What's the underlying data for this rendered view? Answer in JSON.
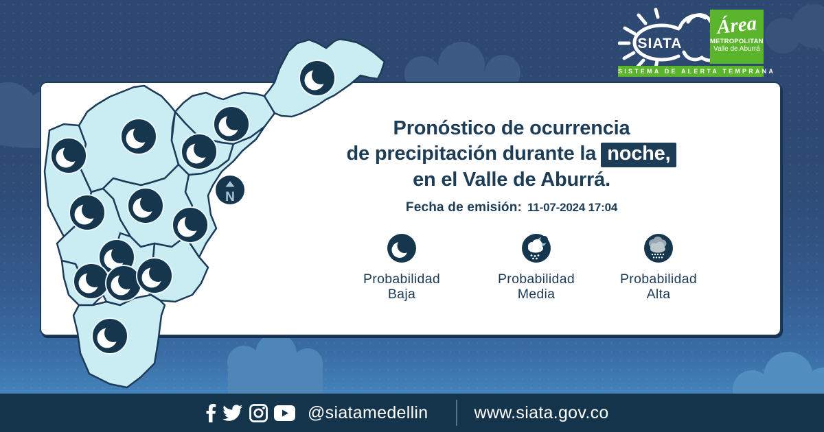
{
  "header": {
    "siata_logo": {
      "text": "SIATA"
    },
    "amva_logo": {
      "line1": "Área",
      "line2": "METROPOLITANA",
      "line3": "Valle de Aburrá"
    },
    "tagline": "SISTEMA DE ALERTA TEMPRANA"
  },
  "card": {
    "title_line1": "Pronóstico de ocurrencia",
    "title_line2_prefix": "de precipitación durante la",
    "title_highlight": "noche,",
    "title_line3": "en el Valle de Aburrá.",
    "emission_label": "Fecha de emisión:",
    "emission_value": "11-07-2024 17:04"
  },
  "map": {
    "compass_label": "N",
    "zones": [
      {
        "id": "zone-1",
        "forecast": "Probabilidad Baja",
        "marker": "moon-icon"
      },
      {
        "id": "zone-2",
        "forecast": "Probabilidad Baja",
        "marker": "moon-icon"
      },
      {
        "id": "zone-3",
        "forecast": "Probabilidad Baja",
        "marker": "moon-icon"
      },
      {
        "id": "zone-4",
        "forecast": "Probabilidad Baja",
        "marker": "moon-icon"
      },
      {
        "id": "zone-5",
        "forecast": "Probabilidad Baja",
        "marker": "moon-icon"
      },
      {
        "id": "zone-6",
        "forecast": "Probabilidad Baja",
        "marker": "moon-icon"
      },
      {
        "id": "zone-7",
        "forecast": "Probabilidad Baja",
        "marker": "moon-icon"
      },
      {
        "id": "zone-8",
        "forecast": "Probabilidad Baja",
        "marker": "moon-icon"
      },
      {
        "id": "zone-9",
        "forecast": "Probabilidad Baja",
        "marker": "moon-icon"
      },
      {
        "id": "zone-10",
        "forecast": "Probabilidad Baja",
        "marker": "moon-icon"
      },
      {
        "id": "zone-11",
        "forecast": "Probabilidad Baja",
        "marker": "moon-icon"
      },
      {
        "id": "zone-12",
        "forecast": "Probabilidad Baja",
        "marker": "moon-icon"
      },
      {
        "id": "zone-13",
        "forecast": "Probabilidad Baja",
        "marker": "moon-icon"
      }
    ]
  },
  "legend": {
    "items": [
      {
        "icon": "moon-icon",
        "line1": "Probabilidad",
        "line2": "Baja"
      },
      {
        "icon": "cloud-rain-moon-icon",
        "line1": "Probabilidad",
        "line2": "Media"
      },
      {
        "icon": "cloud-heavy-rain-icon",
        "line1": "Probabilidad",
        "line2": "Alta"
      }
    ]
  },
  "footer": {
    "social_icons": [
      "facebook-icon",
      "twitter-icon",
      "instagram-icon",
      "youtube-icon"
    ],
    "handle": "@siatamedellin",
    "website": "www.siata.gov.co"
  },
  "colors": {
    "sky": "#2d4971",
    "sky_gradient_bottom": "#4383bb",
    "footer_bar": "#14344b",
    "navy": "#1d3c55",
    "map_fill": "#c9edf2",
    "map_stroke": "#1d3b59",
    "marker_navy": "#16364e",
    "brand_green": "#5ab52c",
    "card_bg": "#ffffff"
  }
}
